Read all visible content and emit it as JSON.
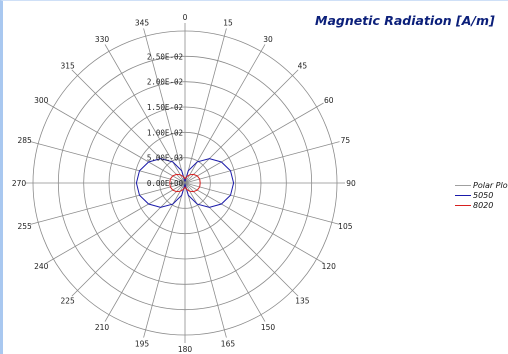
{
  "chart_data": {
    "type": "polar-line",
    "title": "Magnetic Radiation [A/m]",
    "angle_labels": [
      "0",
      "15",
      "30",
      "45",
      "60",
      "75",
      "90",
      "105",
      "120",
      "135",
      "150",
      "165",
      "180",
      "195",
      "210",
      "225",
      "240",
      "255",
      "270",
      "285",
      "300",
      "315",
      "330",
      "345"
    ],
    "angles_deg": [
      0,
      15,
      30,
      45,
      60,
      75,
      90,
      105,
      120,
      135,
      150,
      165,
      180,
      195,
      210,
      225,
      240,
      255,
      270,
      285,
      300,
      315,
      330,
      345
    ],
    "radial_tick_labels": [
      "0.00E+00",
      "5.00E-03",
      "1.00E-02",
      "1.50E-02",
      "2.00E-02",
      "2.50E-02"
    ],
    "radial_ticks": [
      0,
      0.005,
      0.01,
      0.015,
      0.02,
      0.025
    ],
    "r_max": 0.03,
    "legend_position": "right",
    "legend": [
      {
        "label": "Polar Plot",
        "color": "#a0a0a0"
      },
      {
        "label": "5050",
        "color": "#1a1aaa"
      },
      {
        "label": "8020",
        "color": "#d62020"
      }
    ],
    "series": [
      {
        "name": "5050",
        "color": "#1a1aaa",
        "values": [
          0.0003,
          0.0025,
          0.0048,
          0.0068,
          0.0083,
          0.0093,
          0.0096,
          0.0093,
          0.0083,
          0.0068,
          0.0048,
          0.0025,
          0.0003,
          0.0025,
          0.0048,
          0.0068,
          0.0083,
          0.0093,
          0.0096,
          0.0093,
          0.0083,
          0.0068,
          0.0048,
          0.0025
        ]
      },
      {
        "name": "8020",
        "color": "#d62020",
        "values": [
          0.0008,
          0.0013,
          0.0019,
          0.0024,
          0.0028,
          0.003,
          0.003,
          0.003,
          0.0028,
          0.0024,
          0.0019,
          0.0013,
          0.0008,
          0.0013,
          0.0019,
          0.0024,
          0.0028,
          0.003,
          0.003,
          0.003,
          0.0028,
          0.0024,
          0.0019,
          0.0013
        ]
      }
    ]
  }
}
